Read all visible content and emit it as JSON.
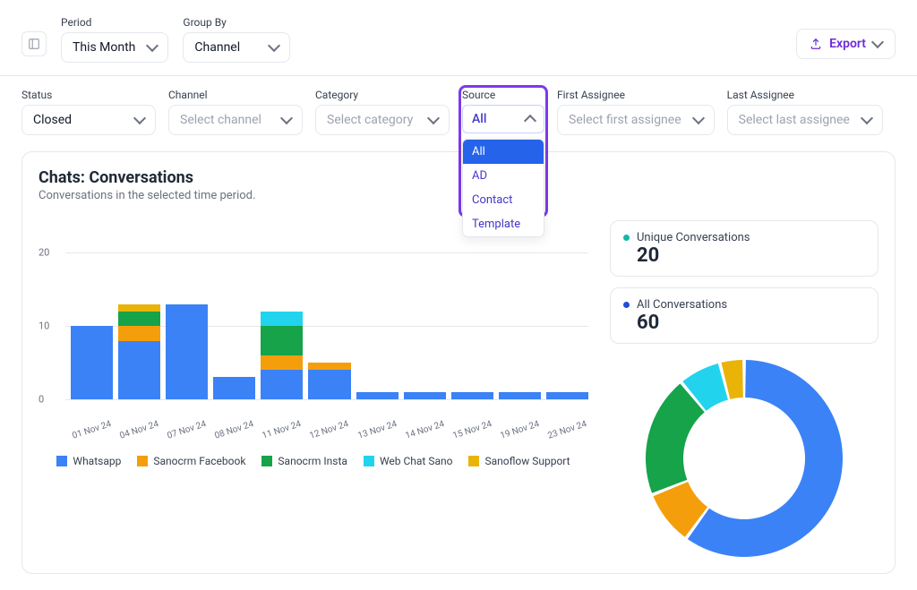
{
  "topbar": {
    "period_label": "Period",
    "period_value": "This Month",
    "groupby_label": "Group By",
    "groupby_value": "Channel",
    "export_label": "Export"
  },
  "filters": {
    "status": {
      "label": "Status",
      "value": "Closed"
    },
    "channel": {
      "label": "Channel",
      "placeholder": "Select channel"
    },
    "category": {
      "label": "Category",
      "placeholder": "Select category"
    },
    "source": {
      "label": "Source",
      "value": "All",
      "options": [
        "All",
        "AD",
        "Contact",
        "Template"
      ]
    },
    "first_assignee": {
      "label": "First Assignee",
      "placeholder": "Select first assignee"
    },
    "last_assignee": {
      "label": "Last Assignee",
      "placeholder": "Select last assignee"
    }
  },
  "chats": {
    "title": "Chats: Conversations",
    "subtitle": "Conversations in the selected time period.",
    "stats": {
      "unique": {
        "label": "Unique Conversations",
        "value": "20",
        "dot": "#14b8a6"
      },
      "all": {
        "label": "All Conversations",
        "value": "60",
        "dot": "#1d4ed8"
      }
    },
    "bar_chart": {
      "type": "stacked-bar",
      "ymax": 22,
      "yticks": [
        0,
        10,
        20
      ],
      "categories": [
        "01 Nov 24",
        "04 Nov 24",
        "07 Nov 24",
        "08 Nov 24",
        "11 Nov 24",
        "12 Nov 24",
        "13 Nov 24",
        "14 Nov 24",
        "15 Nov 24",
        "19 Nov 24",
        "23 Nov 24"
      ],
      "series": [
        {
          "name": "Whatsapp",
          "color": "#3b82f6",
          "values": [
            10,
            8,
            13,
            3,
            4,
            4,
            1,
            1,
            1,
            1,
            1
          ]
        },
        {
          "name": "Sanocrm Facebook",
          "color": "#f59e0b",
          "values": [
            0,
            2,
            0,
            0,
            2,
            1,
            0,
            0,
            0,
            0,
            0
          ]
        },
        {
          "name": "Sanocrm Insta",
          "color": "#16a34a",
          "values": [
            0,
            2,
            0,
            0,
            4,
            0,
            0,
            0,
            0,
            0,
            0
          ]
        },
        {
          "name": "Web Chat Sano",
          "color": "#22d3ee",
          "values": [
            0,
            0,
            0,
            0,
            2,
            0,
            0,
            0,
            0,
            0,
            0
          ]
        },
        {
          "name": "Sanoflow Support",
          "color": "#eab308",
          "values": [
            0,
            1,
            0,
            0,
            0,
            0,
            0,
            0,
            0,
            0,
            0
          ]
        }
      ]
    },
    "donut": {
      "type": "donut",
      "size": 220,
      "thickness": 42,
      "slices": [
        {
          "name": "Whatsapp",
          "color": "#3b82f6",
          "value": 60
        },
        {
          "name": "Sanocrm Facebook",
          "color": "#f59e0b",
          "value": 9
        },
        {
          "name": "Sanocrm Insta",
          "color": "#16a34a",
          "value": 20
        },
        {
          "name": "Web Chat Sano",
          "color": "#22d3ee",
          "value": 7
        },
        {
          "name": "Sanoflow Support",
          "color": "#eab308",
          "value": 4
        }
      ]
    }
  }
}
